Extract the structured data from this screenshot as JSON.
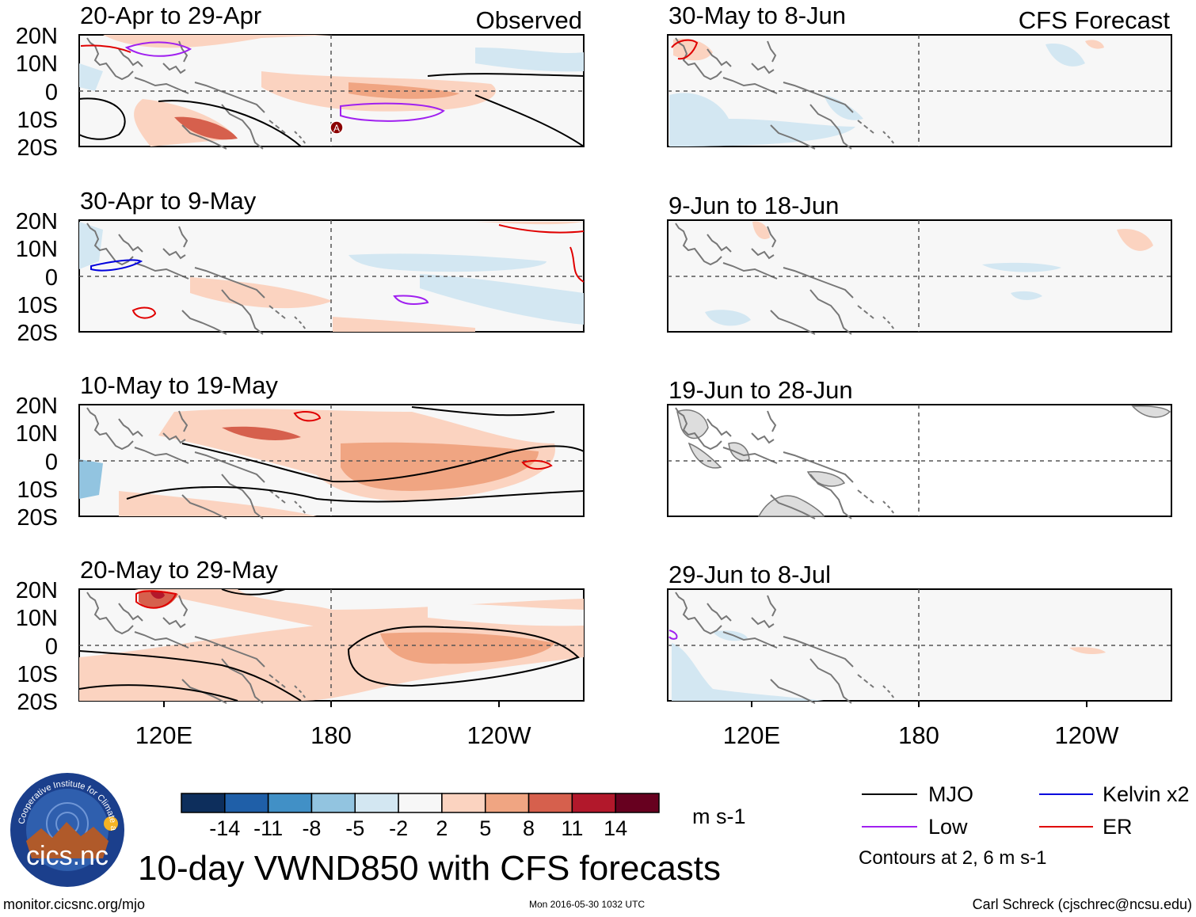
{
  "figure": {
    "title": "10-day VWND850 with CFS forecasts",
    "website": "monitor.cicsnc.org/mjo",
    "timestamp": "Mon 2016-05-30 1032 UTC",
    "author": "Carl Schreck (cjschrec@ncsu.edu)",
    "logo_text": "cics.nc",
    "logo_ring_text": "Cooperative Institute for Climate and Satellites"
  },
  "columns": {
    "observed_label": "Observed",
    "forecast_label": "CFS Forecast"
  },
  "panels": {
    "observed": [
      {
        "period": "20-Apr to 29-Apr"
      },
      {
        "period": "30-Apr to 9-May"
      },
      {
        "period": "10-May to 19-May"
      },
      {
        "period": "20-May to 29-May"
      }
    ],
    "forecast": [
      {
        "period": "30-May to 8-Jun"
      },
      {
        "period": "9-Jun to 18-Jun"
      },
      {
        "period": "19-Jun to 28-Jun"
      },
      {
        "period": "29-Jun to 8-Jul"
      }
    ]
  },
  "axes": {
    "lat_ticks": [
      "20N",
      "10N",
      "0",
      "10S",
      "20S"
    ],
    "lon_ticks": [
      "120E",
      "180",
      "120W"
    ]
  },
  "colorbar": {
    "ticks": [
      "-14",
      "-11",
      "-8",
      "-5",
      "-2",
      "2",
      "5",
      "8",
      "11",
      "14"
    ],
    "units": "m s-1",
    "colors": [
      "#0d2e5c",
      "#1f5fa8",
      "#4190c6",
      "#92c4e0",
      "#d3e7f2",
      "#f7f7f7",
      "#fbd3c0",
      "#f0a582",
      "#d6604d",
      "#b2182b",
      "#67001f"
    ]
  },
  "legend": {
    "items": [
      {
        "label": "MJO",
        "color": "#000000"
      },
      {
        "label": "Kelvin x2",
        "color": "#0000dd"
      },
      {
        "label": "Low",
        "color": "#a020f0"
      },
      {
        "label": "ER",
        "color": "#e00000"
      }
    ],
    "note": "Contours at 2, 6 m s-1"
  },
  "annotations": {
    "marker_letter": "A"
  }
}
